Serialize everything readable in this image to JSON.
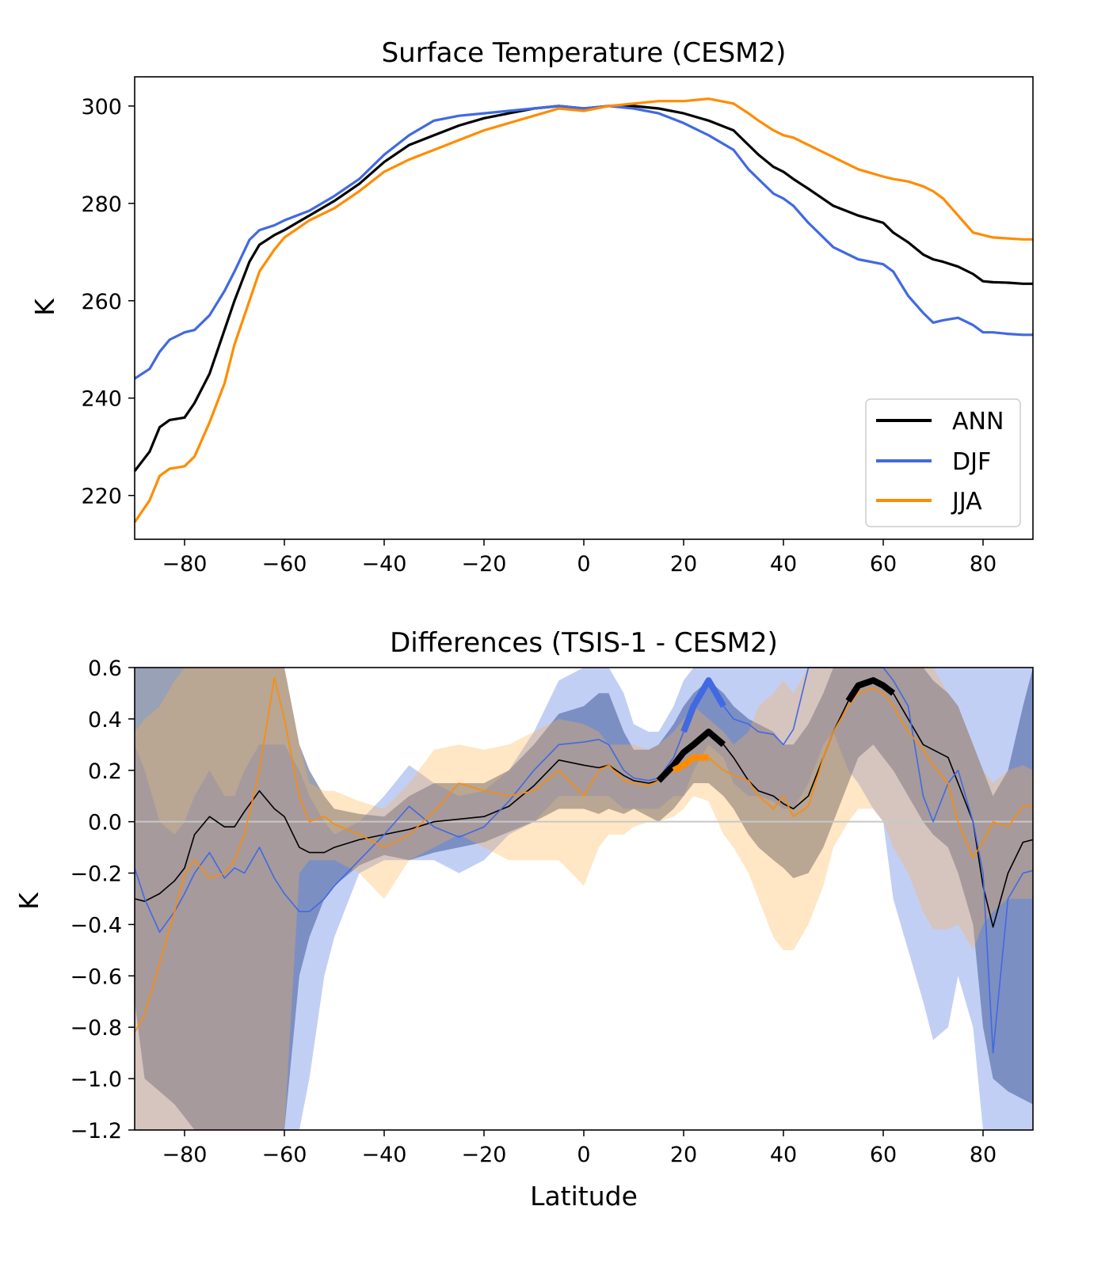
{
  "chart_data": [
    {
      "type": "line",
      "title": "Surface Temperature (CESM2)",
      "xlabel": "",
      "ylabel": "K",
      "xlim": [
        -90,
        90
      ],
      "ylim": [
        211,
        306
      ],
      "xticks": [
        -80,
        -60,
        -40,
        -20,
        0,
        20,
        40,
        60,
        80
      ],
      "xtick_labels": [
        "−80",
        "−60",
        "−40",
        "−20",
        "0",
        "20",
        "40",
        "60",
        "80"
      ],
      "yticks": [
        220,
        240,
        260,
        280,
        300
      ],
      "ytick_labels": [
        "220",
        "240",
        "260",
        "280",
        "300"
      ],
      "legend_position": "lower-right",
      "x": [
        -90,
        -87,
        -85,
        -83,
        -80,
        -78,
        -75,
        -72,
        -70,
        -67,
        -65,
        -62,
        -60,
        -55,
        -50,
        -45,
        -40,
        -35,
        -30,
        -25,
        -20,
        -15,
        -10,
        -5,
        0,
        5,
        10,
        15,
        20,
        25,
        30,
        33,
        35,
        38,
        40,
        42,
        45,
        50,
        55,
        60,
        62,
        65,
        68,
        70,
        72,
        75,
        78,
        80,
        82,
        85,
        88,
        90
      ],
      "series": [
        {
          "name": "ANN",
          "color": "#000000",
          "values": [
            225,
            229,
            234,
            235.5,
            236,
            239,
            245,
            254,
            260,
            268,
            271.5,
            273.5,
            274.5,
            277.5,
            280.5,
            284,
            288.5,
            292,
            294,
            296,
            297.5,
            298.5,
            299.5,
            300,
            299.5,
            300,
            300,
            299.5,
            298.5,
            297,
            295,
            292,
            290,
            287.5,
            286.5,
            285,
            283,
            279.5,
            277.5,
            276,
            274,
            272,
            269.5,
            268.5,
            268,
            267,
            265.5,
            264,
            263.8,
            263.7,
            263.5,
            263.5
          ]
        },
        {
          "name": "DJF",
          "color": "#4169e1",
          "values": [
            244,
            246,
            249.5,
            252,
            253.5,
            254,
            257,
            262,
            266,
            272.5,
            274.5,
            275.5,
            276.5,
            278.5,
            281.5,
            285,
            290,
            294,
            297,
            298,
            298.5,
            299,
            299.5,
            300,
            299.5,
            300,
            299.5,
            298.5,
            296.5,
            294,
            291,
            287,
            285,
            282,
            281,
            279.5,
            276,
            271,
            268.5,
            267.5,
            266,
            261,
            257.5,
            255.5,
            256,
            256.5,
            255,
            253.5,
            253.5,
            253.2,
            253,
            253
          ]
        },
        {
          "name": "JJA",
          "color": "#ff8c00",
          "values": [
            214.5,
            219,
            224,
            225.5,
            226,
            228,
            235,
            243,
            251,
            260,
            266,
            270.5,
            273,
            276.5,
            279,
            282.5,
            286.5,
            289,
            291,
            293,
            295,
            296.5,
            298,
            299.5,
            299,
            300,
            300.5,
            301,
            301,
            301.5,
            300.5,
            298.5,
            297,
            295,
            294,
            293.5,
            292,
            289.5,
            287,
            285.5,
            285,
            284.5,
            283.5,
            282.5,
            281,
            277.5,
            274,
            273.5,
            273,
            272.8,
            272.6,
            272.6
          ]
        }
      ]
    },
    {
      "type": "line",
      "title": "Differences (TSIS-1 - CESM2)",
      "xlabel": "Latitude",
      "ylabel": "K",
      "xlim": [
        -90,
        90
      ],
      "ylim": [
        -1.2,
        0.6
      ],
      "xticks": [
        -80,
        -60,
        -40,
        -20,
        0,
        20,
        40,
        60,
        80
      ],
      "xtick_labels": [
        "−80",
        "−60",
        "−40",
        "−20",
        "0",
        "20",
        "40",
        "60",
        "80"
      ],
      "yticks": [
        -1.2,
        -1.0,
        -0.8,
        -0.6,
        -0.4,
        -0.2,
        0.0,
        0.2,
        0.4,
        0.6
      ],
      "ytick_labels": [
        "−1.2",
        "−1.0",
        "−0.8",
        "−0.6",
        "−0.4",
        "−0.2",
        "0.0",
        "0.2",
        "0.4",
        "0.6"
      ],
      "zero_line": 0,
      "x": [
        -90,
        -88,
        -85,
        -82,
        -80,
        -78,
        -75,
        -72,
        -70,
        -68,
        -65,
        -62,
        -60,
        -57,
        -55,
        -52,
        -50,
        -45,
        -40,
        -35,
        -30,
        -25,
        -20,
        -15,
        -10,
        -5,
        0,
        3,
        5,
        8,
        10,
        13,
        15,
        18,
        20,
        22,
        25,
        28,
        30,
        33,
        35,
        38,
        40,
        42,
        45,
        48,
        50,
        53,
        55,
        58,
        60,
        62,
        65,
        68,
        70,
        73,
        75,
        78,
        80,
        82,
        85,
        88,
        90
      ],
      "series": [
        {
          "name": "ANN",
          "color": "#000000",
          "band_color": "#1a2e5c",
          "values": [
            -0.3,
            -0.31,
            -0.28,
            -0.23,
            -0.18,
            -0.05,
            0.02,
            -0.02,
            -0.02,
            0.04,
            0.12,
            0.05,
            0.02,
            -0.1,
            -0.12,
            -0.12,
            -0.1,
            -0.07,
            -0.05,
            -0.03,
            0.0,
            0.01,
            0.02,
            0.06,
            0.14,
            0.24,
            0.22,
            0.21,
            0.22,
            0.18,
            0.16,
            0.15,
            0.16,
            0.22,
            0.27,
            0.3,
            0.35,
            0.3,
            0.25,
            0.16,
            0.12,
            0.1,
            0.07,
            0.05,
            0.1,
            0.25,
            0.35,
            0.47,
            0.53,
            0.55,
            0.53,
            0.5,
            0.4,
            0.3,
            0.28,
            0.25,
            0.15,
            0.0,
            -0.25,
            -0.41,
            -0.2,
            -0.08,
            -0.07
          ],
          "lower": [
            -0.7,
            -1.0,
            -1.05,
            -1.1,
            -1.15,
            -1.2,
            -1.2,
            -1.2,
            -1.2,
            -1.2,
            -1.2,
            -1.2,
            -1.2,
            -0.6,
            -0.45,
            -0.3,
            -0.25,
            -0.17,
            -0.13,
            -0.15,
            -0.12,
            -0.1,
            -0.08,
            -0.04,
            0.0,
            0.05,
            0.05,
            0.03,
            0.05,
            0.03,
            0.05,
            0.02,
            0.0,
            0.05,
            0.1,
            0.15,
            0.15,
            0.1,
            0.05,
            -0.05,
            -0.1,
            -0.15,
            -0.18,
            -0.22,
            -0.2,
            -0.1,
            0.0,
            0.15,
            0.25,
            0.3,
            0.25,
            0.2,
            0.1,
            0.0,
            -0.05,
            -0.1,
            -0.2,
            -0.4,
            -0.8,
            -1.0,
            -1.05,
            -1.08,
            -1.1
          ],
          "upper": [
            0.6,
            0.6,
            0.6,
            0.6,
            0.6,
            0.6,
            0.6,
            0.6,
            0.6,
            0.6,
            0.6,
            0.6,
            0.6,
            0.3,
            0.2,
            0.1,
            0.05,
            0.03,
            0.02,
            0.1,
            0.15,
            0.15,
            0.15,
            0.2,
            0.3,
            0.42,
            0.45,
            0.5,
            0.5,
            0.35,
            0.28,
            0.28,
            0.3,
            0.38,
            0.45,
            0.5,
            0.55,
            0.5,
            0.45,
            0.4,
            0.38,
            0.35,
            0.3,
            0.3,
            0.38,
            0.5,
            0.6,
            0.6,
            0.6,
            0.6,
            0.6,
            0.6,
            0.6,
            0.6,
            0.55,
            0.5,
            0.45,
            0.3,
            0.2,
            0.1,
            0.2,
            0.45,
            0.6
          ],
          "significant_segments": [
            [
              15,
              28
            ],
            [
              53,
              62
            ]
          ]
        },
        {
          "name": "DJF",
          "color": "#4169e1",
          "band_color": "#4169e1",
          "values": [
            -0.18,
            -0.3,
            -0.43,
            -0.35,
            -0.28,
            -0.2,
            -0.12,
            -0.22,
            -0.18,
            -0.2,
            -0.1,
            -0.22,
            -0.28,
            -0.35,
            -0.35,
            -0.3,
            -0.25,
            -0.15,
            -0.05,
            0.06,
            -0.02,
            -0.06,
            -0.02,
            0.08,
            0.2,
            0.3,
            0.31,
            0.32,
            0.3,
            0.2,
            0.17,
            0.16,
            0.17,
            0.25,
            0.35,
            0.45,
            0.55,
            0.45,
            0.4,
            0.38,
            0.35,
            0.34,
            0.3,
            0.36,
            0.6,
            0.6,
            0.6,
            0.6,
            0.6,
            0.6,
            0.6,
            0.55,
            0.45,
            0.1,
            0.0,
            0.15,
            0.2,
            0.0,
            -0.2,
            -0.9,
            -0.3,
            -0.2,
            -0.19
          ],
          "lower": [
            -1.2,
            -1.2,
            -1.2,
            -1.2,
            -1.2,
            -1.2,
            -1.2,
            -1.2,
            -1.2,
            -1.2,
            -1.2,
            -1.2,
            -1.2,
            -1.2,
            -1.0,
            -0.6,
            -0.45,
            -0.2,
            -0.15,
            -0.15,
            -0.15,
            -0.2,
            -0.15,
            -0.05,
            0.0,
            0.1,
            0.1,
            0.1,
            0.1,
            0.05,
            0.05,
            0.05,
            0.05,
            0.1,
            0.1,
            0.2,
            0.3,
            0.25,
            0.15,
            0.1,
            0.1,
            0.08,
            0.05,
            0.05,
            0.15,
            0.3,
            0.35,
            0.2,
            0.15,
            0.05,
            0.0,
            -0.3,
            -0.5,
            -0.7,
            -0.85,
            -0.8,
            -0.6,
            -0.8,
            -1.2,
            -1.2,
            -1.2,
            -1.2,
            -1.2
          ],
          "upper": [
            0.3,
            0.2,
            0.0,
            -0.05,
            0.0,
            0.1,
            0.2,
            0.1,
            0.1,
            0.2,
            0.3,
            0.3,
            0.3,
            0.2,
            0.1,
            0.0,
            -0.05,
            0.0,
            0.1,
            0.22,
            0.15,
            0.1,
            0.12,
            0.2,
            0.35,
            0.55,
            0.6,
            0.6,
            0.6,
            0.5,
            0.38,
            0.35,
            0.35,
            0.45,
            0.55,
            0.6,
            0.6,
            0.6,
            0.6,
            0.6,
            0.6,
            0.6,
            0.6,
            0.6,
            0.6,
            0.6,
            0.6,
            0.6,
            0.6,
            0.6,
            0.6,
            0.6,
            0.6,
            0.6,
            0.6,
            0.6,
            0.6,
            0.6,
            0.6,
            0.6,
            0.6,
            0.6,
            0.6
          ],
          "significant_segments": [
            [
              20,
              28
            ]
          ]
        },
        {
          "name": "JJA",
          "color": "#ff8c00",
          "band_color": "#ffb04a",
          "values": [
            -0.82,
            -0.75,
            -0.55,
            -0.35,
            -0.2,
            -0.15,
            -0.22,
            -0.2,
            -0.15,
            -0.05,
            0.2,
            0.56,
            0.4,
            0.1,
            0.0,
            0.02,
            -0.01,
            -0.05,
            -0.1,
            -0.05,
            0.04,
            0.15,
            0.12,
            0.1,
            0.12,
            0.2,
            0.1,
            0.2,
            0.22,
            0.16,
            0.15,
            0.14,
            0.16,
            0.2,
            0.22,
            0.25,
            0.25,
            0.2,
            0.18,
            0.16,
            0.1,
            0.05,
            0.1,
            0.02,
            0.06,
            0.25,
            0.35,
            0.45,
            0.5,
            0.52,
            0.5,
            0.45,
            0.35,
            0.28,
            0.22,
            0.15,
            0.0,
            -0.14,
            -0.08,
            0.0,
            -0.02,
            0.06,
            0.06
          ],
          "lower": [
            -1.2,
            -1.2,
            -1.2,
            -1.2,
            -1.2,
            -1.2,
            -1.2,
            -1.2,
            -1.2,
            -1.2,
            -1.2,
            -1.2,
            -1.2,
            -0.2,
            -0.15,
            -0.15,
            -0.15,
            -0.2,
            -0.3,
            -0.15,
            -0.1,
            -0.05,
            -0.1,
            -0.15,
            -0.15,
            -0.15,
            -0.25,
            -0.1,
            -0.05,
            -0.05,
            -0.02,
            0.0,
            0.0,
            0.02,
            0.05,
            0.1,
            0.08,
            -0.05,
            -0.1,
            -0.2,
            -0.3,
            -0.45,
            -0.5,
            -0.5,
            -0.4,
            -0.25,
            -0.1,
            0.0,
            0.05,
            0.05,
            0.0,
            -0.1,
            -0.2,
            -0.35,
            -0.42,
            -0.42,
            -0.4,
            -0.5,
            -0.4,
            -0.35,
            -0.3,
            -0.3,
            -0.3
          ],
          "upper": [
            0.35,
            0.4,
            0.45,
            0.55,
            0.6,
            0.6,
            0.6,
            0.6,
            0.6,
            0.6,
            0.6,
            0.6,
            0.6,
            0.3,
            0.15,
            0.12,
            0.12,
            0.08,
            0.05,
            0.15,
            0.28,
            0.3,
            0.28,
            0.3,
            0.35,
            0.4,
            0.38,
            0.35,
            0.3,
            0.3,
            0.3,
            0.28,
            0.3,
            0.35,
            0.4,
            0.45,
            0.4,
            0.35,
            0.3,
            0.35,
            0.45,
            0.5,
            0.55,
            0.5,
            0.6,
            0.6,
            0.6,
            0.6,
            0.6,
            0.6,
            0.6,
            0.6,
            0.6,
            0.6,
            0.6,
            0.5,
            0.45,
            0.3,
            0.2,
            0.15,
            0.2,
            0.22,
            0.2
          ],
          "significant_segments": [
            [
              17,
              25
            ]
          ]
        }
      ]
    }
  ]
}
